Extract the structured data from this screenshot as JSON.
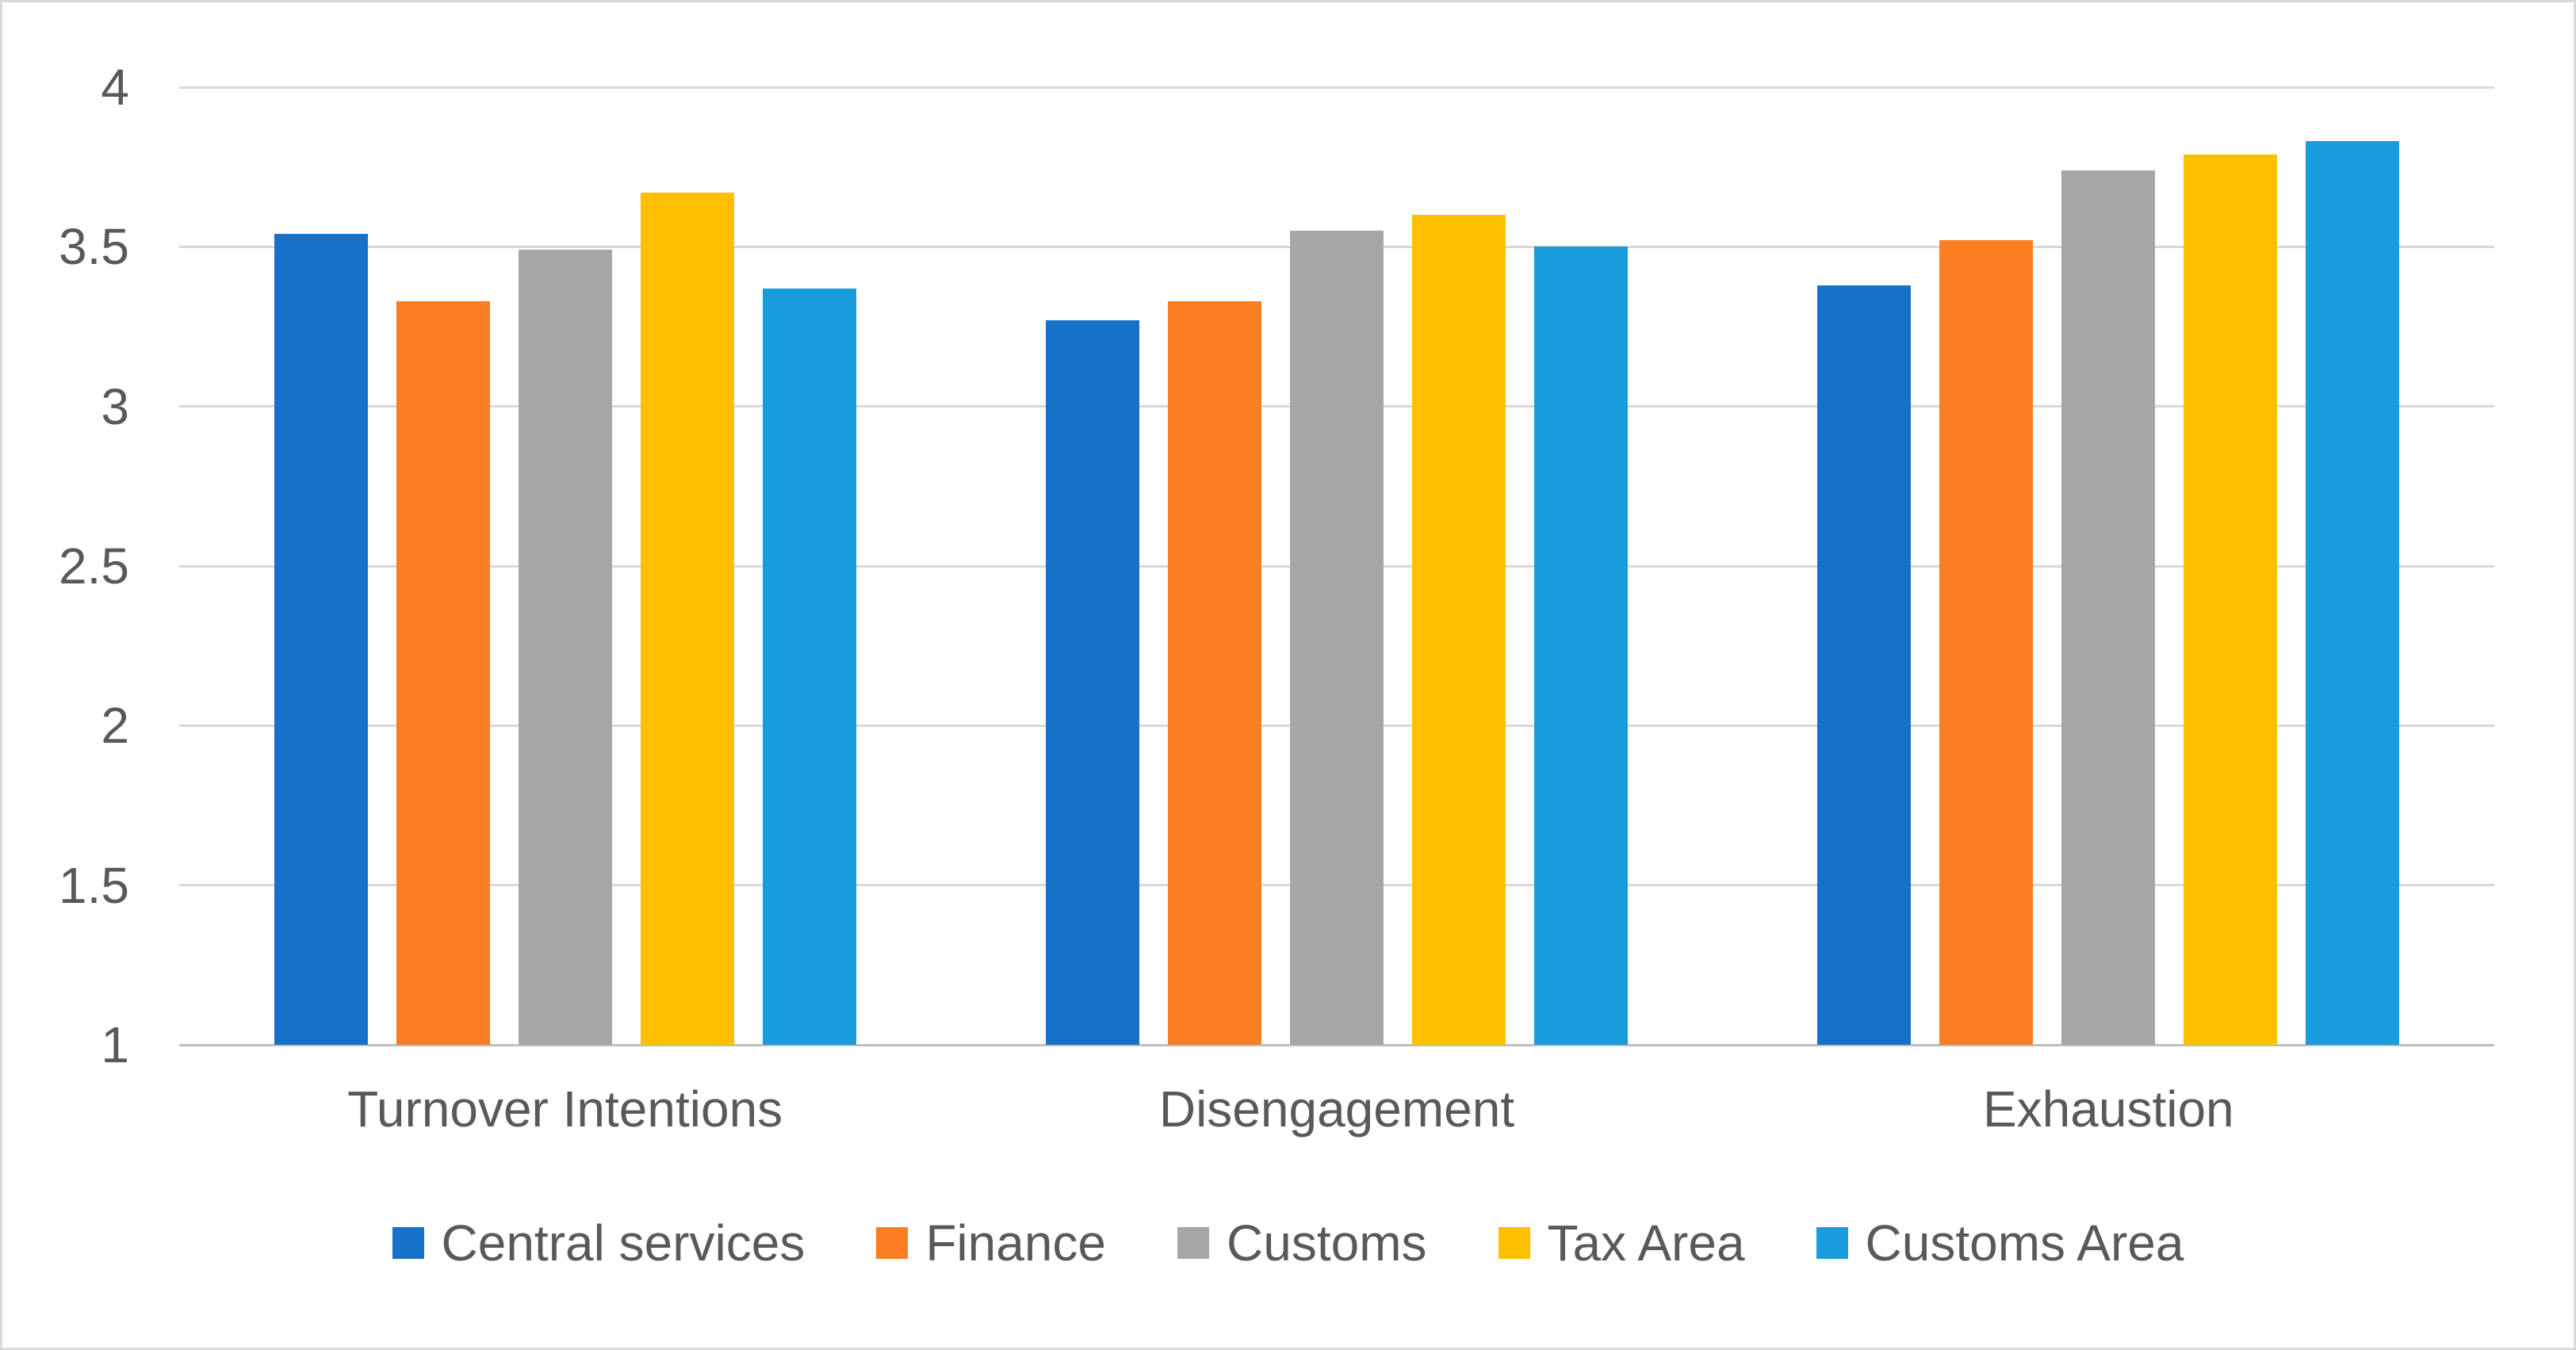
{
  "chart_data": {
    "type": "bar",
    "title": "",
    "categories": [
      "Turnover Intentions",
      "Disengagement",
      "Exhaustion"
    ],
    "series": [
      {
        "name": "Central services",
        "color": "#1572C8",
        "values": [
          3.54,
          3.27,
          3.38
        ]
      },
      {
        "name": "Finance",
        "color": "#FB7E23",
        "values": [
          3.33,
          3.33,
          3.52
        ]
      },
      {
        "name": "Customs",
        "color": "#A6A6A6",
        "values": [
          3.49,
          3.55,
          3.74
        ]
      },
      {
        "name": "Tax Area",
        "color": "#FFC000",
        "values": [
          3.67,
          3.6,
          3.79
        ]
      },
      {
        "name": "Customs Area",
        "color": "#199CDB",
        "values": [
          3.37,
          3.5,
          3.83
        ]
      }
    ],
    "ylim": [
      1,
      4
    ],
    "ytick_step": 0.5,
    "ytick_labels": [
      "1",
      "1.5",
      "2",
      "2.5",
      "3",
      "3.5",
      "4"
    ],
    "grid": true,
    "legend_position": "bottom",
    "colors": {
      "gridline": "#D9D9D9",
      "axis_line": "#BFBFBF",
      "text": "#595959",
      "border": "#D9D9D9",
      "background": "#FFFFFF"
    }
  }
}
